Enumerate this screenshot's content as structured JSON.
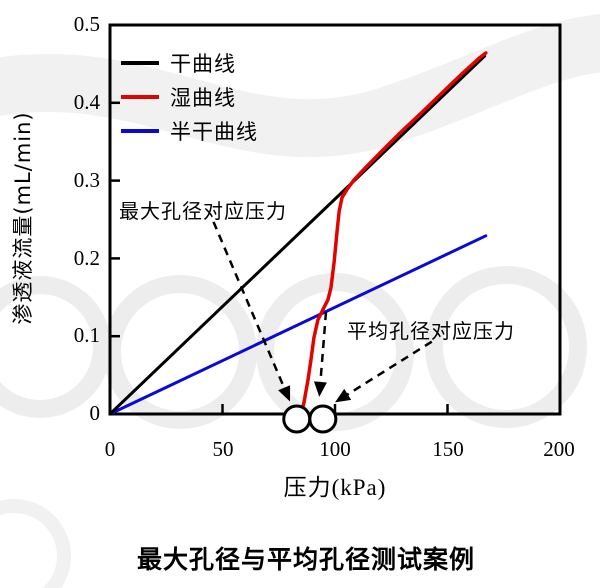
{
  "figure_title": "最大孔径与平均孔径测试案例",
  "chart_data": {
    "type": "line",
    "xlabel_cn": "压力",
    "xlabel_unit": "(kPa)",
    "ylabel": "渗透液流量(mL/min)",
    "xlim": [
      0,
      200
    ],
    "ylim": [
      0,
      0.5
    ],
    "x_ticks": [
      0,
      50,
      100,
      150,
      200
    ],
    "y_ticks": [
      0,
      0.1,
      0.2,
      0.3,
      0.4,
      0.5
    ],
    "x_tick_labels": [
      "0",
      "50",
      "100",
      "150",
      "200"
    ],
    "y_tick_labels": [
      "0",
      "0.1",
      "0.2",
      "0.3",
      "0.4",
      "0.5"
    ],
    "grid": false,
    "legend_position": "top-left-inside",
    "series": [
      {
        "name": "干曲线",
        "color": "#000000",
        "width": 3,
        "points": [
          [
            0,
            0
          ],
          [
            166.5,
            0.46
          ]
        ]
      },
      {
        "name": "湿曲线",
        "color": "#e00400",
        "width": 3.5,
        "points": [
          [
            85.3,
            0.004
          ],
          [
            86.2,
            0.014
          ],
          [
            86.9,
            0.026
          ],
          [
            88.0,
            0.044
          ],
          [
            89.3,
            0.069
          ],
          [
            90.6,
            0.098
          ],
          [
            92.4,
            0.121
          ],
          [
            94.6,
            0.134
          ],
          [
            96.9,
            0.147
          ],
          [
            98.2,
            0.162
          ],
          [
            99.6,
            0.195
          ],
          [
            100.9,
            0.234
          ],
          [
            101.8,
            0.26
          ],
          [
            103.1,
            0.278
          ],
          [
            105.4,
            0.289
          ],
          [
            108.5,
            0.301
          ],
          [
            113.0,
            0.315
          ],
          [
            120.5,
            0.337
          ],
          [
            129.5,
            0.363
          ],
          [
            138.4,
            0.387
          ],
          [
            147.3,
            0.412
          ],
          [
            156.3,
            0.437
          ],
          [
            164.3,
            0.458
          ],
          [
            167.0,
            0.464
          ]
        ]
      },
      {
        "name": "半干曲线",
        "color": "#0a0ad6",
        "width": 3,
        "points": [
          [
            0,
            0
          ],
          [
            167.0,
            0.229
          ]
        ]
      }
    ],
    "axis_marker_circles": {
      "description": "open circles on the pressure axis marking the two test pressures",
      "pressures_kPa": [
        83,
        94.6
      ]
    },
    "annotations": [
      {
        "text": "最大孔径对应压力",
        "arrow_from": [
          46,
          0.247
        ],
        "arrow_to": [
          80,
          0.016
        ]
      },
      {
        "text": "平均孔径对应压力",
        "arrow_from": [
          143,
          0.093
        ],
        "arrow_to": [
          100,
          0.015
        ]
      },
      {
        "text": "",
        "arrow_from": [
          96,
          0.131
        ],
        "arrow_to": [
          93,
          0.022
        ]
      }
    ]
  }
}
